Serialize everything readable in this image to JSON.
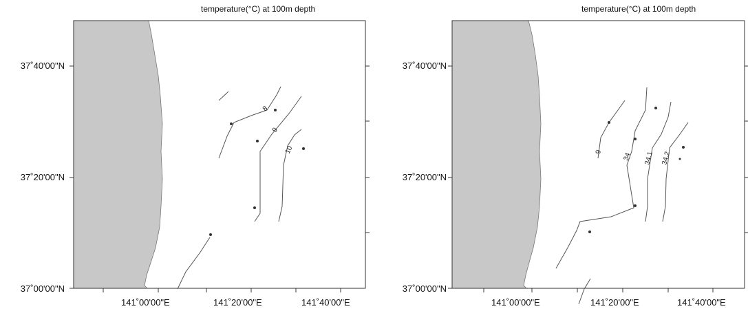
{
  "panels": [
    {
      "title": "temperature(°C) at 100m depth",
      "lat_labels": [
        "37˚40'00\"N",
        "37˚20'00\"N",
        "37˚00'00\"N"
      ],
      "lon_labels": [
        "141˚00'00\"E",
        "141˚20'00\"E",
        "141˚40'00\"E"
      ],
      "contour_labels": [
        "8",
        "9",
        "10"
      ]
    },
    {
      "title": "temperature(°C) at 100m depth",
      "lat_labels": [
        "37˚40'00\"N",
        "37˚20'00\"N",
        "37˚00'00\"N"
      ],
      "lon_labels": [
        "141˚00'00\"E",
        "141˚20'00\"E",
        "141˚40'00\"E"
      ],
      "contour_labels": [
        "9",
        "34",
        "34.1",
        "34.2"
      ]
    }
  ],
  "colors": {
    "land": "#c8c8c8",
    "frame": "#333333",
    "contour": "#444444"
  }
}
